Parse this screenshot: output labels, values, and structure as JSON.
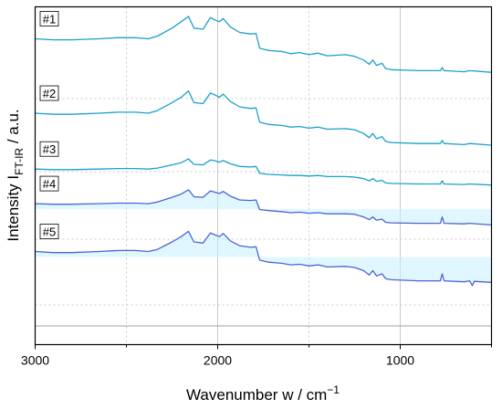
{
  "chart_data": {
    "type": "line",
    "title": "",
    "xlabel": "Wavenumber w / cm",
    "xlabel_superscript": "−1",
    "ylabel": "Intensity I",
    "ylabel_subscript": "FT-IR",
    "ylabel_suffix": " / a.u.",
    "xlim": [
      3000,
      500
    ],
    "x_reversed": true,
    "x_ticks": [
      {
        "value": 3000,
        "label": "3000"
      },
      {
        "value": 2000,
        "label": "2000"
      },
      {
        "value": 1000,
        "label": "1000"
      }
    ],
    "y_ticks_shown": false,
    "grid": true,
    "colors": {
      "spectrum_cyan": "#1aa0cc",
      "spectrum_blue": "#4a64d8",
      "fill": "#c8f0ff",
      "grid": "#c8c8c8",
      "baseline": "#a0a0a0"
    },
    "series": [
      {
        "name": "#1",
        "offset": 4.0,
        "color_key": "spectrum_cyan",
        "points": [
          [
            3000,
            0.0
          ],
          [
            2900,
            -0.02
          ],
          [
            2800,
            -0.02
          ],
          [
            2650,
            0.0
          ],
          [
            2550,
            0.02
          ],
          [
            2450,
            0.02
          ],
          [
            2380,
            0.0
          ],
          [
            2330,
            0.05
          ],
          [
            2250,
            0.2
          ],
          [
            2200,
            0.32
          ],
          [
            2160,
            0.42
          ],
          [
            2130,
            0.2
          ],
          [
            2080,
            0.18
          ],
          [
            2040,
            0.4
          ],
          [
            2020,
            0.36
          ],
          [
            1990,
            0.32
          ],
          [
            1970,
            0.38
          ],
          [
            1930,
            0.22
          ],
          [
            1880,
            0.12
          ],
          [
            1820,
            0.09
          ],
          [
            1790,
            0.1
          ],
          [
            1770,
            -0.18
          ],
          [
            1720,
            -0.22
          ],
          [
            1650,
            -0.24
          ],
          [
            1600,
            -0.28
          ],
          [
            1550,
            -0.26
          ],
          [
            1500,
            -0.3
          ],
          [
            1450,
            -0.27
          ],
          [
            1400,
            -0.32
          ],
          [
            1300,
            -0.3
          ],
          [
            1250,
            -0.33
          ],
          [
            1200,
            -0.4
          ],
          [
            1170,
            -0.48
          ],
          [
            1150,
            -0.4
          ],
          [
            1130,
            -0.5
          ],
          [
            1100,
            -0.46
          ],
          [
            1080,
            -0.56
          ],
          [
            1050,
            -0.58
          ],
          [
            900,
            -0.6
          ],
          [
            780,
            -0.6
          ],
          [
            770,
            -0.54
          ],
          [
            760,
            -0.6
          ],
          [
            650,
            -0.62
          ],
          [
            620,
            -0.6
          ],
          [
            500,
            -0.63
          ]
        ]
      },
      {
        "name": "#2",
        "offset": 2.6,
        "color_key": "spectrum_cyan",
        "points": [
          [
            3000,
            0.0
          ],
          [
            2900,
            -0.02
          ],
          [
            2800,
            -0.02
          ],
          [
            2650,
            0.0
          ],
          [
            2550,
            0.02
          ],
          [
            2450,
            0.02
          ],
          [
            2380,
            0.0
          ],
          [
            2330,
            0.05
          ],
          [
            2250,
            0.2
          ],
          [
            2200,
            0.3
          ],
          [
            2160,
            0.42
          ],
          [
            2130,
            0.2
          ],
          [
            2080,
            0.18
          ],
          [
            2040,
            0.38
          ],
          [
            2020,
            0.35
          ],
          [
            1990,
            0.3
          ],
          [
            1970,
            0.36
          ],
          [
            1930,
            0.22
          ],
          [
            1880,
            0.12
          ],
          [
            1820,
            0.09
          ],
          [
            1790,
            0.1
          ],
          [
            1770,
            -0.17
          ],
          [
            1720,
            -0.21
          ],
          [
            1650,
            -0.23
          ],
          [
            1600,
            -0.26
          ],
          [
            1550,
            -0.25
          ],
          [
            1500,
            -0.28
          ],
          [
            1450,
            -0.26
          ],
          [
            1400,
            -0.3
          ],
          [
            1300,
            -0.29
          ],
          [
            1250,
            -0.31
          ],
          [
            1200,
            -0.38
          ],
          [
            1170,
            -0.46
          ],
          [
            1150,
            -0.38
          ],
          [
            1130,
            -0.48
          ],
          [
            1100,
            -0.44
          ],
          [
            1080,
            -0.53
          ],
          [
            1050,
            -0.55
          ],
          [
            900,
            -0.57
          ],
          [
            780,
            -0.57
          ],
          [
            770,
            -0.51
          ],
          [
            760,
            -0.57
          ],
          [
            650,
            -0.59
          ],
          [
            620,
            -0.57
          ],
          [
            500,
            -0.6
          ]
        ]
      },
      {
        "name": "#3",
        "offset": 1.55,
        "color_key": "spectrum_cyan",
        "points": [
          [
            3000,
            0.0
          ],
          [
            2900,
            -0.01
          ],
          [
            2800,
            -0.01
          ],
          [
            2650,
            0.0
          ],
          [
            2550,
            0.01
          ],
          [
            2450,
            0.01
          ],
          [
            2380,
            0.0
          ],
          [
            2330,
            0.02
          ],
          [
            2250,
            0.08
          ],
          [
            2200,
            0.12
          ],
          [
            2160,
            0.19
          ],
          [
            2130,
            0.09
          ],
          [
            2080,
            0.08
          ],
          [
            2040,
            0.17
          ],
          [
            2020,
            0.16
          ],
          [
            1990,
            0.13
          ],
          [
            1970,
            0.16
          ],
          [
            1930,
            0.1
          ],
          [
            1880,
            0.05
          ],
          [
            1820,
            0.04
          ],
          [
            1790,
            0.05
          ],
          [
            1770,
            -0.08
          ],
          [
            1720,
            -0.1
          ],
          [
            1650,
            -0.11
          ],
          [
            1600,
            -0.12
          ],
          [
            1550,
            -0.12
          ],
          [
            1500,
            -0.13
          ],
          [
            1450,
            -0.12
          ],
          [
            1400,
            -0.14
          ],
          [
            1300,
            -0.14
          ],
          [
            1250,
            -0.15
          ],
          [
            1200,
            -0.18
          ],
          [
            1170,
            -0.22
          ],
          [
            1150,
            -0.18
          ],
          [
            1130,
            -0.23
          ],
          [
            1100,
            -0.21
          ],
          [
            1080,
            -0.26
          ],
          [
            1050,
            -0.27
          ],
          [
            900,
            -0.28
          ],
          [
            780,
            -0.28
          ],
          [
            770,
            -0.22
          ],
          [
            760,
            -0.28
          ],
          [
            650,
            -0.29
          ],
          [
            620,
            -0.28
          ],
          [
            500,
            -0.3
          ]
        ]
      },
      {
        "name": "#4",
        "offset": 0.9,
        "color_key": "spectrum_blue",
        "points": [
          [
            3000,
            0.0
          ],
          [
            2900,
            -0.01
          ],
          [
            2800,
            -0.01
          ],
          [
            2650,
            0.0
          ],
          [
            2550,
            0.01
          ],
          [
            2450,
            0.01
          ],
          [
            2380,
            0.0
          ],
          [
            2330,
            0.03
          ],
          [
            2250,
            0.12
          ],
          [
            2200,
            0.18
          ],
          [
            2160,
            0.26
          ],
          [
            2130,
            0.13
          ],
          [
            2080,
            0.12
          ],
          [
            2040,
            0.24
          ],
          [
            2020,
            0.22
          ],
          [
            1990,
            0.19
          ],
          [
            1970,
            0.23
          ],
          [
            1930,
            0.14
          ],
          [
            1880,
            0.07
          ],
          [
            1820,
            0.06
          ],
          [
            1790,
            0.07
          ],
          [
            1770,
            -0.11
          ],
          [
            1720,
            -0.13
          ],
          [
            1650,
            -0.15
          ],
          [
            1600,
            -0.17
          ],
          [
            1550,
            -0.16
          ],
          [
            1500,
            -0.18
          ],
          [
            1450,
            -0.17
          ],
          [
            1400,
            -0.19
          ],
          [
            1300,
            -0.19
          ],
          [
            1250,
            -0.2
          ],
          [
            1200,
            -0.25
          ],
          [
            1170,
            -0.3
          ],
          [
            1150,
            -0.25
          ],
          [
            1130,
            -0.31
          ],
          [
            1100,
            -0.29
          ],
          [
            1080,
            -0.35
          ],
          [
            1050,
            -0.36
          ],
          [
            900,
            -0.37
          ],
          [
            780,
            -0.37
          ],
          [
            770,
            -0.25
          ],
          [
            760,
            -0.37
          ],
          [
            650,
            -0.38
          ],
          [
            620,
            -0.37
          ],
          [
            500,
            -0.4
          ]
        ]
      },
      {
        "name": "#5",
        "offset": 0.0,
        "color_key": "spectrum_blue",
        "points": [
          [
            3000,
            0.0
          ],
          [
            2900,
            -0.02
          ],
          [
            2800,
            -0.02
          ],
          [
            2650,
            0.0
          ],
          [
            2550,
            0.02
          ],
          [
            2450,
            0.02
          ],
          [
            2380,
            0.0
          ],
          [
            2330,
            0.04
          ],
          [
            2250,
            0.18
          ],
          [
            2200,
            0.28
          ],
          [
            2160,
            0.38
          ],
          [
            2130,
            0.18
          ],
          [
            2080,
            0.16
          ],
          [
            2040,
            0.35
          ],
          [
            2020,
            0.32
          ],
          [
            1990,
            0.28
          ],
          [
            1970,
            0.34
          ],
          [
            1930,
            0.2
          ],
          [
            1880,
            0.11
          ],
          [
            1820,
            0.08
          ],
          [
            1790,
            0.09
          ],
          [
            1770,
            -0.16
          ],
          [
            1720,
            -0.2
          ],
          [
            1650,
            -0.22
          ],
          [
            1600,
            -0.25
          ],
          [
            1550,
            -0.24
          ],
          [
            1500,
            -0.27
          ],
          [
            1450,
            -0.25
          ],
          [
            1400,
            -0.29
          ],
          [
            1300,
            -0.28
          ],
          [
            1250,
            -0.3
          ],
          [
            1200,
            -0.36
          ],
          [
            1170,
            -0.44
          ],
          [
            1150,
            -0.36
          ],
          [
            1130,
            -0.46
          ],
          [
            1100,
            -0.42
          ],
          [
            1080,
            -0.51
          ],
          [
            1050,
            -0.53
          ],
          [
            900,
            -0.55
          ],
          [
            780,
            -0.55
          ],
          [
            770,
            -0.42
          ],
          [
            760,
            -0.55
          ],
          [
            650,
            -0.57
          ],
          [
            620,
            -0.55
          ],
          [
            605,
            -0.64
          ],
          [
            595,
            -0.56
          ],
          [
            500,
            -0.58
          ]
        ]
      }
    ]
  }
}
